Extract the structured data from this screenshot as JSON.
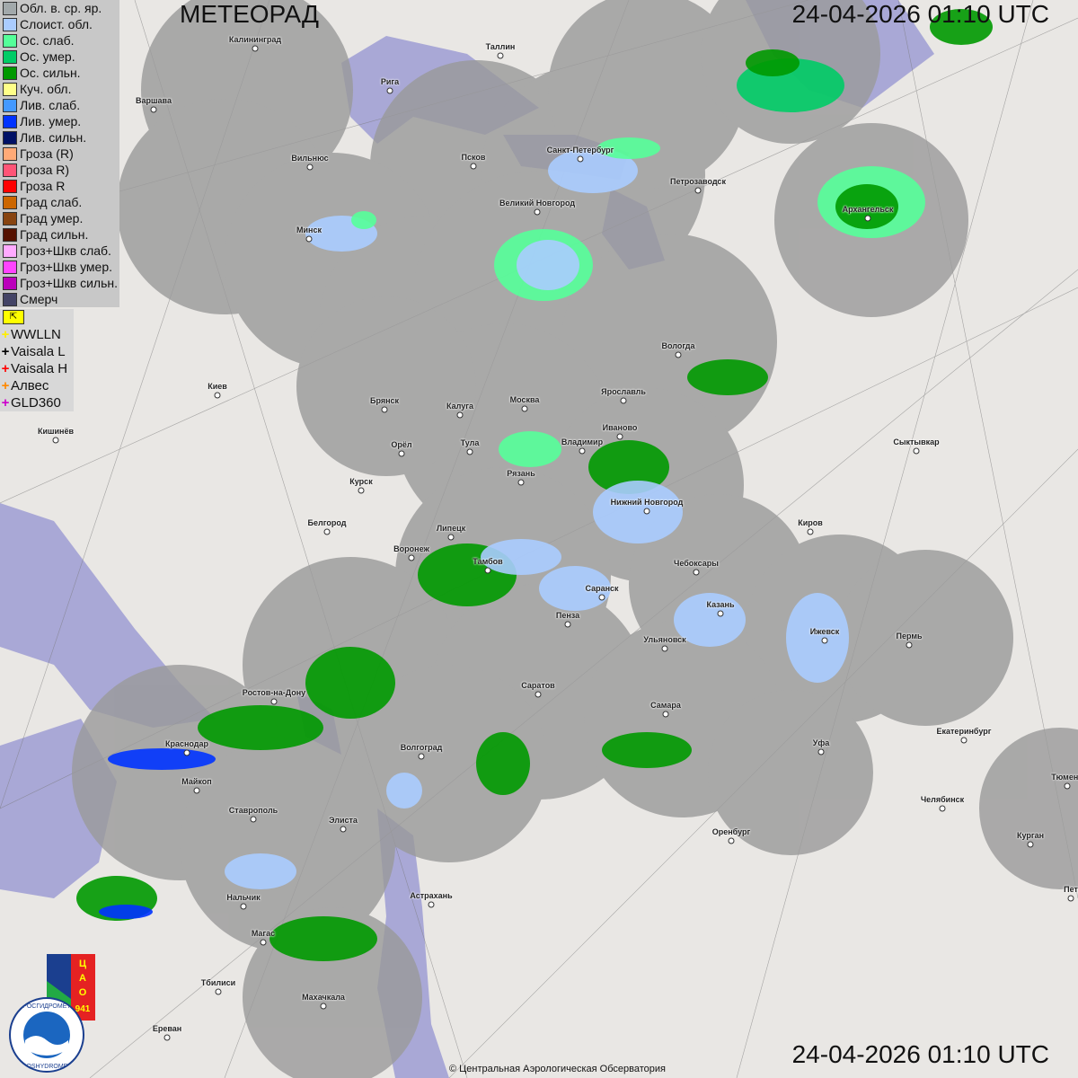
{
  "header": {
    "title": "МЕТЕОРАД",
    "datetime": "24-04-2026  01:10 UTC"
  },
  "footer": {
    "datetime": "24-04-2026  01:10 UTC",
    "copyright": "© Центральная Аэрологическая Обсерватория"
  },
  "legend": [
    {
      "label": "Обл. в. ср. яр.",
      "color": "#a2a9ab"
    },
    {
      "label": "Слоист. обл.",
      "color": "#aaccff"
    },
    {
      "label": "Ос. слаб.",
      "color": "#55ff99"
    },
    {
      "label": "Ос. умер.",
      "color": "#00cc66"
    },
    {
      "label": "Ос. сильн.",
      "color": "#009900"
    },
    {
      "label": "Куч. обл.",
      "color": "#ffff88"
    },
    {
      "label": "Лив. слаб.",
      "color": "#4499ff"
    },
    {
      "label": "Лив. умер.",
      "color": "#0033ff"
    },
    {
      "label": "Лив. сильн.",
      "color": "#001166"
    },
    {
      "label": "Гроза (R)",
      "color": "#ffaa77"
    },
    {
      "label": "Гроза R)",
      "color": "#ff5577"
    },
    {
      "label": "Гроза R",
      "color": "#ff0000"
    },
    {
      "label": "Град слаб.",
      "color": "#cc6600"
    },
    {
      "label": "Град умер.",
      "color": "#884411"
    },
    {
      "label": "Град сильн.",
      "color": "#551100"
    },
    {
      "label": "Гроз+Шкв слаб.",
      "color": "#ffaaff"
    },
    {
      "label": "Гроз+Шкв умер.",
      "color": "#ff44ff"
    },
    {
      "label": "Гроз+Шкв сильн.",
      "color": "#bb00bb"
    },
    {
      "label": "Смерч",
      "color": "#444466"
    }
  ],
  "lightning_legend": [
    {
      "label": "WWLLN",
      "color": "#ffee00"
    },
    {
      "label": "Vaisala L",
      "color": "#000000"
    },
    {
      "label": "Vaisala H",
      "color": "#ff0000"
    },
    {
      "label": "Алвес",
      "color": "#ff8800"
    },
    {
      "label": "GLD360",
      "color": "#cc00cc"
    }
  ],
  "cities": [
    "Калининград",
    "Таллин",
    "Рига",
    "Варшава",
    "Вильнюс",
    "Псков",
    "Санкт-Петербург",
    "Петрозаводск",
    "Великий Новгород",
    "Минск",
    "Архангельск",
    "Вологда",
    "Киев",
    "Ярославль",
    "Брянск",
    "Калуга",
    "Москва",
    "Кишинёв",
    "Иваново",
    "Владимир",
    "Тула",
    "Орёл",
    "Сыктывкар",
    "Рязань",
    "Курск",
    "Нижний Новгород",
    "Киров",
    "Белгород",
    "Липецк",
    "Воронеж",
    "Тамбов",
    "Чебоксары",
    "Саранск",
    "Казань",
    "Пенза",
    "Ижевск",
    "Пермь",
    "Ульяновск",
    "Ростов-на-Дону",
    "Саратов",
    "Самара",
    "Краснодар",
    "Волгоград",
    "Уфа",
    "Екатеринбург",
    "Тюмень",
    "Майкоп",
    "Челябинск",
    "Ставрополь",
    "Элиста",
    "Оренбург",
    "Курган",
    "Астрахань",
    "Нальчик",
    "Магас",
    "Тбилиси",
    "Махачкала",
    "Ереван",
    "Пет"
  ],
  "logos": {
    "cao": "ЦАО 941",
    "roshydromet": "РОСГИДРОМЕТ ROSHYDROMET"
  },
  "colors": {
    "radar_coverage": "#9a9a9a",
    "sea": "#a9a8d6",
    "land": "#e9e7e4"
  }
}
